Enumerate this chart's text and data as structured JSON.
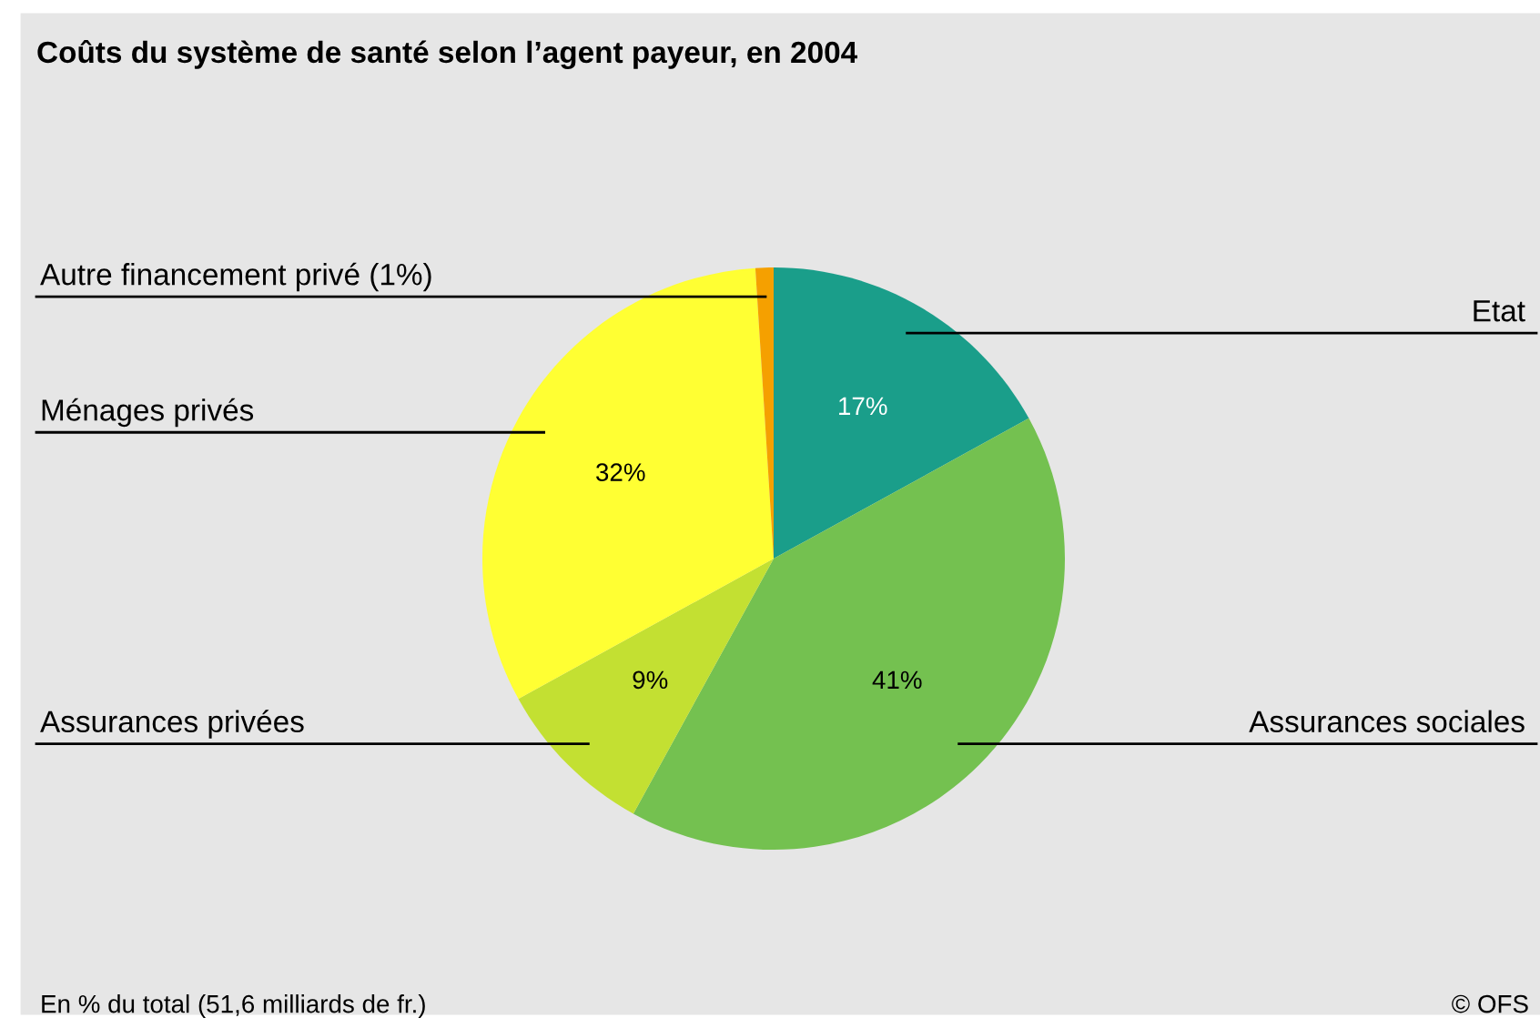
{
  "chart_data": {
    "type": "pie",
    "title": "Coûts du système de santé selon l’agent payeur, en 2004",
    "categories": [
      "Etat",
      "Assurances sociales",
      "Assurances privées",
      "Ménages privés",
      "Autre financement privé (1%)"
    ],
    "values": [
      17,
      41,
      9,
      32,
      1
    ],
    "colors": [
      "#1a9e8a",
      "#74c150",
      "#c3e032",
      "#ffff33",
      "#f5a000"
    ],
    "value_labels": [
      "17%",
      "41%",
      "9%",
      "32%",
      null
    ],
    "legend": false,
    "annotations": [
      "En % du total (51,6 milliards de fr.)",
      "© OFS"
    ]
  }
}
